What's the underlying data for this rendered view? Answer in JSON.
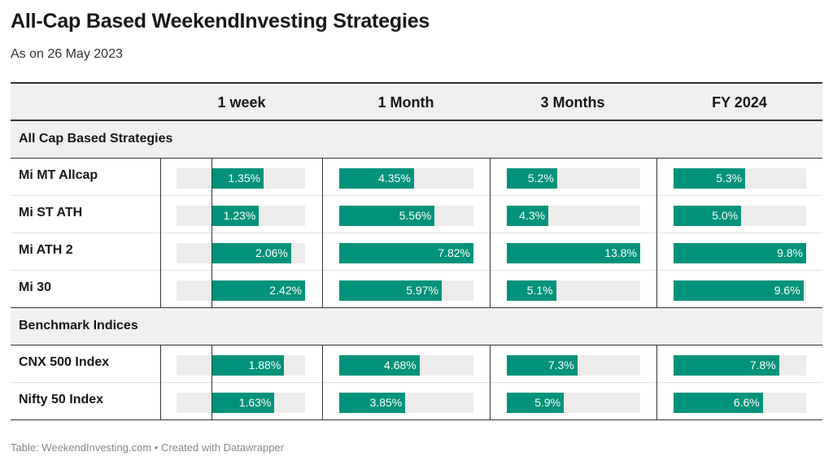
{
  "header": {
    "title": "All-Cap Based WeekendInvesting Strategies",
    "subtitle": "As on 26 May 2023"
  },
  "footer": {
    "source": "Table: WeekendInvesting.com • Created with Datawrapper"
  },
  "colors": {
    "bar": "#00927a",
    "track": "#ececec",
    "header_bg": "#f0f0f0"
  },
  "chart_data": {
    "type": "table",
    "columns": [
      "1 week",
      "1 Month",
      "3 Months",
      "FY 2024"
    ],
    "groups": [
      {
        "name": "All Cap Based Strategies",
        "rows": [
          {
            "name": "Mi MT Allcap",
            "values": [
              1.35,
              4.35,
              5.2,
              5.3
            ],
            "labels": [
              "1.35%",
              "4.35%",
              "5.2%",
              "5.3%"
            ]
          },
          {
            "name": "Mi ST ATH",
            "values": [
              1.23,
              5.56,
              4.3,
              5.0
            ],
            "labels": [
              "1.23%",
              "5.56%",
              "4.3%",
              "5.0%"
            ]
          },
          {
            "name": "Mi ATH 2",
            "values": [
              2.06,
              7.82,
              13.8,
              9.8
            ],
            "labels": [
              "2.06%",
              "7.82%",
              "13.8%",
              "9.8%"
            ]
          },
          {
            "name": "Mi 30",
            "values": [
              2.42,
              5.97,
              5.1,
              9.6
            ],
            "labels": [
              "2.42%",
              "5.97%",
              "5.1%",
              "9.6%"
            ]
          }
        ]
      },
      {
        "name": "Benchmark Indices",
        "rows": [
          {
            "name": "CNX 500 Index",
            "values": [
              1.88,
              4.68,
              7.3,
              7.8
            ],
            "labels": [
              "1.88%",
              "4.68%",
              "7.3%",
              "7.8%"
            ]
          },
          {
            "name": "Nifty 50 Index",
            "values": [
              1.63,
              3.85,
              5.9,
              6.6
            ],
            "labels": [
              "1.63%",
              "3.85%",
              "5.9%",
              "6.6%"
            ]
          }
        ]
      }
    ],
    "column_ranges": [
      [
        -0.9,
        2.42
      ],
      [
        0,
        7.82
      ],
      [
        0,
        13.8
      ],
      [
        0,
        9.8
      ]
    ]
  }
}
